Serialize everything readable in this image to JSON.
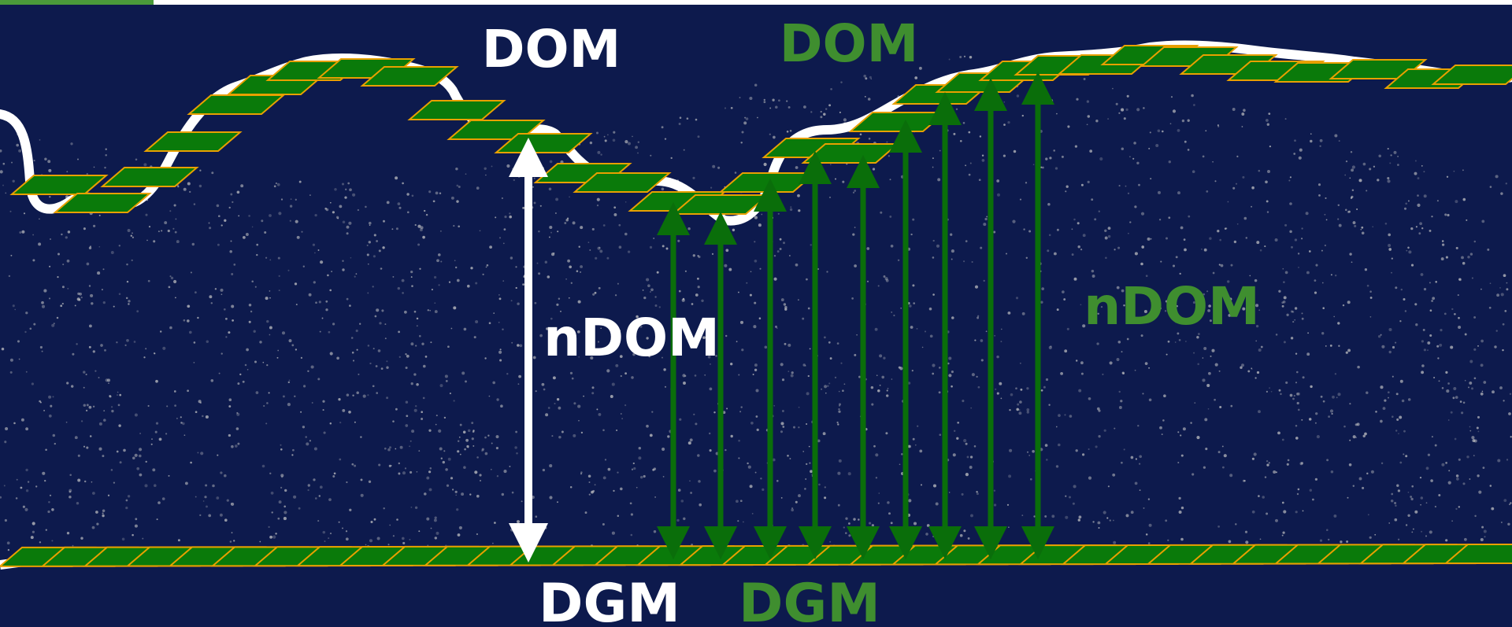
{
  "labels": {
    "dom_white": "DOM",
    "dom_green": "DOM",
    "ndom_white": "nDOM",
    "ndom_green": "nDOM",
    "dgm_white": "DGM",
    "dgm_green": "DGM"
  },
  "colors": {
    "background": "#0d1a4d",
    "white_label": "#ffffff",
    "green_label": "#3f8e2f",
    "tile_fill": "#0a7a0a",
    "tile_stroke": "#e8a000",
    "arrow_green": "#0a6e0a",
    "arrow_white": "#ffffff",
    "points": "#c8c8c8",
    "top_bar": "#4a9a3a"
  }
}
